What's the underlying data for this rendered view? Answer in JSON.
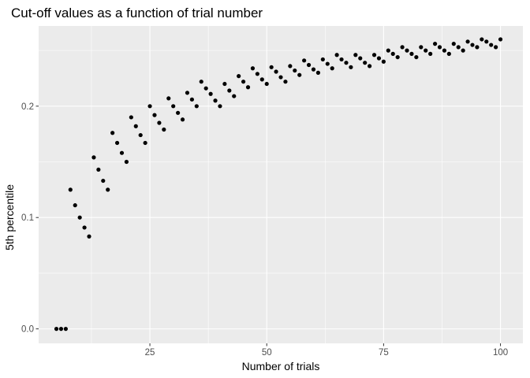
{
  "chart_data": {
    "type": "scatter",
    "title": "Cut-off values as a function of trial number",
    "xlabel": "Number of trials",
    "ylabel": "5th percentile",
    "xlim": [
      1.2,
      104.8
    ],
    "ylim": [
      -0.013,
      0.272
    ],
    "x_ticks": [
      25,
      50,
      75,
      100
    ],
    "x_tick_labels": [
      "25",
      "50",
      "75",
      "100"
    ],
    "y_ticks": [
      0.0,
      0.1,
      0.2
    ],
    "y_tick_labels": [
      "0.0",
      "0.1",
      "0.2"
    ],
    "grid": true,
    "legend": "none",
    "colors": {
      "panel": "#ebebeb",
      "grid_major": "#ffffff",
      "point": "#000000",
      "tick_label": "#4d4d4d",
      "tick_mark": "#333333"
    },
    "series": [
      {
        "x": [
          5,
          6,
          7,
          8,
          9,
          10,
          11,
          12,
          13,
          14,
          15,
          16,
          17,
          18,
          19,
          20,
          21,
          22,
          23,
          24,
          25,
          26,
          27,
          28,
          29,
          30,
          31,
          32,
          33,
          34,
          35,
          36,
          37,
          38,
          39,
          40,
          41,
          42,
          43,
          44,
          45,
          46,
          47,
          48,
          49,
          50,
          51,
          52,
          53,
          54,
          55,
          56,
          57,
          58,
          59,
          60,
          61,
          62,
          63,
          64,
          65,
          66,
          67,
          68,
          69,
          70,
          71,
          72,
          73,
          74,
          75,
          76,
          77,
          78,
          79,
          80,
          81,
          82,
          83,
          84,
          85,
          86,
          87,
          88,
          89,
          90,
          91,
          92,
          93,
          94,
          95,
          96,
          97,
          98,
          99,
          100
        ],
        "y": [
          0.0,
          0.0,
          0.0,
          0.125,
          0.111,
          0.1,
          0.091,
          0.083,
          0.154,
          0.143,
          0.133,
          0.125,
          0.176,
          0.167,
          0.158,
          0.15,
          0.19,
          0.182,
          0.174,
          0.167,
          0.2,
          0.192,
          0.185,
          0.179,
          0.207,
          0.2,
          0.194,
          0.188,
          0.212,
          0.206,
          0.2,
          0.222,
          0.216,
          0.211,
          0.205,
          0.2,
          0.22,
          0.214,
          0.209,
          0.227,
          0.222,
          0.217,
          0.234,
          0.229,
          0.224,
          0.22,
          0.235,
          0.231,
          0.226,
          0.222,
          0.236,
          0.232,
          0.228,
          0.241,
          0.237,
          0.233,
          0.23,
          0.242,
          0.238,
          0.234,
          0.246,
          0.242,
          0.239,
          0.235,
          0.246,
          0.243,
          0.239,
          0.236,
          0.246,
          0.243,
          0.24,
          0.25,
          0.247,
          0.244,
          0.253,
          0.25,
          0.247,
          0.244,
          0.253,
          0.25,
          0.247,
          0.256,
          0.253,
          0.25,
          0.247,
          0.256,
          0.253,
          0.25,
          0.258,
          0.255,
          0.253,
          0.26,
          0.258,
          0.255,
          0.253,
          0.26
        ]
      }
    ]
  }
}
